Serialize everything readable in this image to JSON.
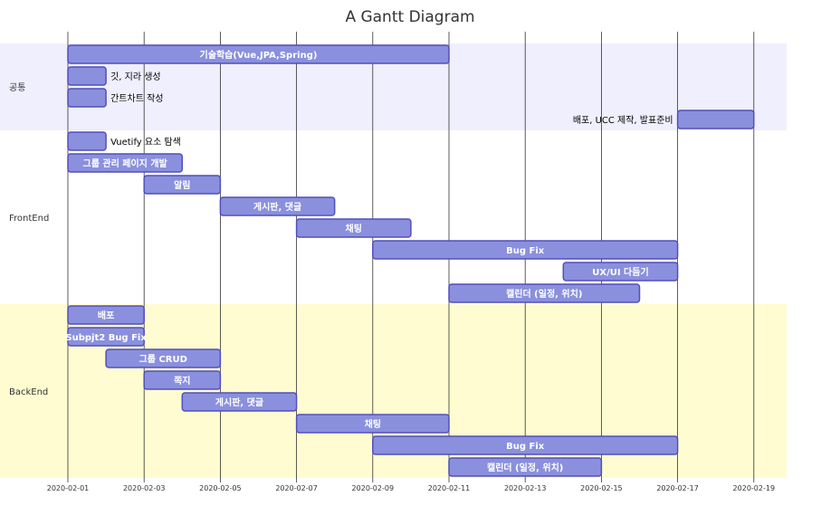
{
  "chart_data": {
    "type": "gantt",
    "title": "A Gantt Diagram",
    "x_ticks": [
      "2020-02-01",
      "2020-02-03",
      "2020-02-05",
      "2020-02-07",
      "2020-02-09",
      "2020-02-11",
      "2020-02-13",
      "2020-02-15",
      "2020-02-17",
      "2020-02-19"
    ],
    "x_range": [
      "2020-02-01",
      "2020-02-20"
    ],
    "section_colors": [
      "#efeffd",
      "#ffffff",
      "#fffcd1"
    ],
    "bar_fill": "#8a90dd",
    "bar_stroke": "#534fbc",
    "gridline_color": "#333333",
    "sections": [
      {
        "name": "공통",
        "tasks": [
          {
            "label": "기술학습(Vue,JPA,Spring)",
            "start": "2020-02-01",
            "end": "2020-02-11"
          },
          {
            "label": "깃, 지라 생성",
            "start": "2020-02-01",
            "end": "2020-02-02"
          },
          {
            "label": "간트차트 작성",
            "start": "2020-02-01",
            "end": "2020-02-02"
          },
          {
            "label": "배포, UCC 제작, 발표준비",
            "start": "2020-02-17",
            "end": "2020-02-19"
          }
        ]
      },
      {
        "name": "FrontEnd",
        "tasks": [
          {
            "label": "Vuetify 요소 탐색",
            "start": "2020-02-01",
            "end": "2020-02-02"
          },
          {
            "label": "그룹 관리 페이지 개발",
            "start": "2020-02-01",
            "end": "2020-02-04"
          },
          {
            "label": "알림",
            "start": "2020-02-03",
            "end": "2020-02-05"
          },
          {
            "label": "게시판, 댓글",
            "start": "2020-02-05",
            "end": "2020-02-08"
          },
          {
            "label": "채팅",
            "start": "2020-02-07",
            "end": "2020-02-10"
          },
          {
            "label": "Bug Fix",
            "start": "2020-02-09",
            "end": "2020-02-17"
          },
          {
            "label": "UX/UI 다듬기",
            "start": "2020-02-14",
            "end": "2020-02-17"
          },
          {
            "label": "캘린더 (일정, 위치)",
            "start": "2020-02-11",
            "end": "2020-02-16"
          }
        ]
      },
      {
        "name": "BackEnd",
        "tasks": [
          {
            "label": "배포",
            "start": "2020-02-01",
            "end": "2020-02-03"
          },
          {
            "label": "Subpjt2 Bug Fix",
            "start": "2020-02-01",
            "end": "2020-02-03"
          },
          {
            "label": "그룹 CRUD",
            "start": "2020-02-02",
            "end": "2020-02-05"
          },
          {
            "label": "쪽지",
            "start": "2020-02-03",
            "end": "2020-02-05"
          },
          {
            "label": "게시판, 댓글",
            "start": "2020-02-04",
            "end": "2020-02-07"
          },
          {
            "label": "채팅",
            "start": "2020-02-07",
            "end": "2020-02-11"
          },
          {
            "label": "Bug Fix",
            "start": "2020-02-09",
            "end": "2020-02-17"
          },
          {
            "label": "캘린더 (일정, 위치)",
            "start": "2020-02-11",
            "end": "2020-02-15"
          }
        ]
      }
    ]
  }
}
